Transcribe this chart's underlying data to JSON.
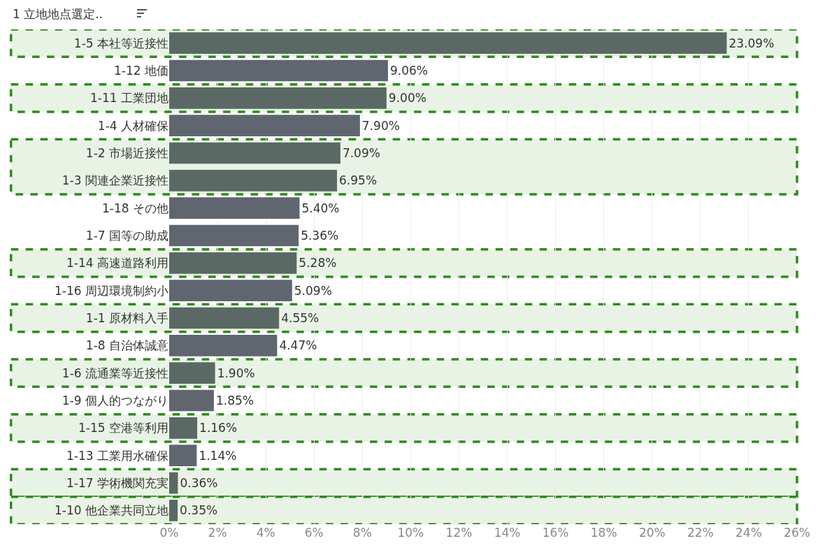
{
  "chart_data": {
    "type": "bar",
    "orientation": "horizontal",
    "ylabel": "1 立地地点選定..",
    "categories": [
      "1-5 本社等近接性",
      "1-12 地価",
      "1-11 工業団地",
      "1-4 人材確保",
      "1-2 市場近接性",
      "1-3 関連企業近接性",
      "1-18 その他",
      "1-7 国等の助成",
      "1-14 高速道路利用",
      "1-16 周辺環境制約小",
      "1-1 原材料入手",
      "1-8 自治体誠意",
      "1-6 流通業等近接性",
      "1-9 個人的つながり",
      "1-15 空港等利用",
      "1-13 工業用水確保",
      "1-17 学術機関充実",
      "1-10 他企業共同立地"
    ],
    "values": [
      23.09,
      9.06,
      9.0,
      7.9,
      7.09,
      6.95,
      5.4,
      5.36,
      5.28,
      5.09,
      4.55,
      4.47,
      1.9,
      1.85,
      1.16,
      1.14,
      0.36,
      0.35
    ],
    "value_labels": [
      "23.09%",
      "9.06%",
      "9.00%",
      "7.90%",
      "7.09%",
      "6.95%",
      "5.40%",
      "5.36%",
      "5.28%",
      "5.09%",
      "4.55%",
      "4.47%",
      "1.90%",
      "1.85%",
      "1.16%",
      "1.14%",
      "0.36%",
      "0.35%"
    ],
    "colors": [
      "#5a6964",
      "#5f6670",
      "#5a6964",
      "#5f6670",
      "#5a6964",
      "#5a6964",
      "#5f6670",
      "#5f6670",
      "#5a6964",
      "#5f6670",
      "#5a6964",
      "#5f6670",
      "#5a6964",
      "#5f6670",
      "#5a6964",
      "#5f6670",
      "#5a6964",
      "#5a6964"
    ],
    "xlim": [
      0,
      26
    ],
    "xticks": [
      {
        "value": 0,
        "label": "0%"
      },
      {
        "value": 2,
        "label": "2%"
      },
      {
        "value": 4,
        "label": "4%"
      },
      {
        "value": 6,
        "label": "6%"
      },
      {
        "value": 8,
        "label": "8%"
      },
      {
        "value": 10,
        "label": "10%"
      },
      {
        "value": 12,
        "label": "12%"
      },
      {
        "value": 14,
        "label": "14%"
      },
      {
        "value": 16,
        "label": "16%"
      },
      {
        "value": 18,
        "label": "18%"
      },
      {
        "value": 20,
        "label": "20%"
      },
      {
        "value": 22,
        "label": "22%"
      },
      {
        "value": 24,
        "label": "24%"
      },
      {
        "value": 26,
        "label": "26%"
      }
    ],
    "grid": "x",
    "legend": false,
    "bands": [
      {
        "axis": "y",
        "from": "1-5 本社等近接性",
        "to": "1-5 本社等近接性",
        "color": "#e9f3e5"
      },
      {
        "axis": "y",
        "from": "1-11 工業団地",
        "to": "1-11 工業団地",
        "color": "#e9f3e5"
      },
      {
        "axis": "y",
        "from": "1-2 市場近接性",
        "to": "1-3 関連企業近接性",
        "color": "#e9f3e5"
      },
      {
        "axis": "y",
        "from": "1-14 高速道路利用",
        "to": "1-14 高速道路利用",
        "color": "#e9f3e5"
      },
      {
        "axis": "y",
        "from": "1-1 原材料入手",
        "to": "1-1 原材料入手",
        "color": "#e9f3e5"
      },
      {
        "axis": "y",
        "from": "1-6 流通業等近接性",
        "to": "1-6 流通業等近接性",
        "color": "#e9f3e5"
      },
      {
        "axis": "y",
        "from": "1-15 空港等利用",
        "to": "1-15 空港等利用",
        "color": "#e9f3e5"
      },
      {
        "axis": "y",
        "from": "1-17 学術機関充実",
        "to": "1-17 学術機関充実",
        "color": "#e9f3e5"
      },
      {
        "axis": "y",
        "from": "1-10 他企業共同立地",
        "to": "1-10 他企業共同立地",
        "color": "#e9f3e5"
      }
    ]
  }
}
